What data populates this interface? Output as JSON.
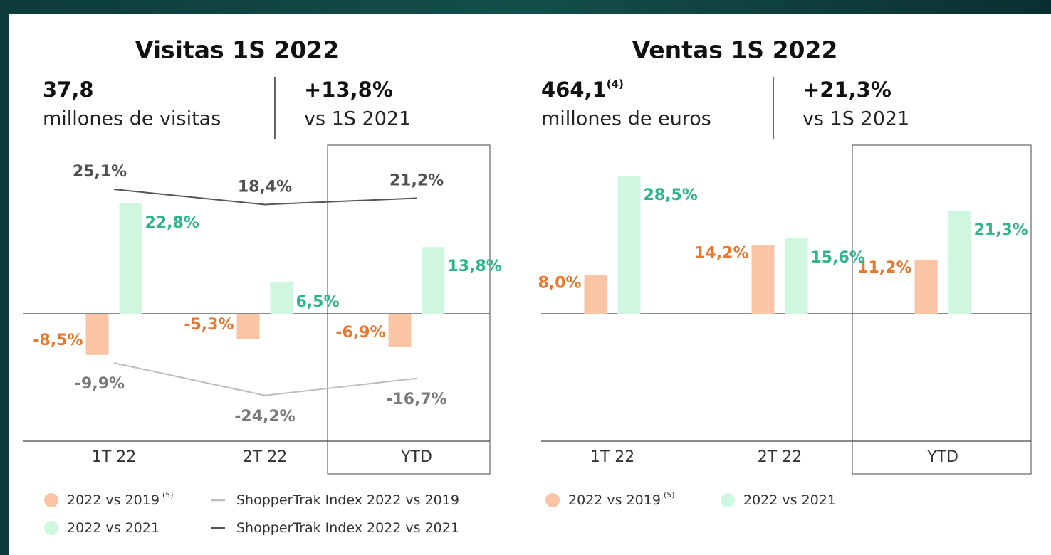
{
  "chart_data": [
    {
      "type": "bar",
      "title": "Visitas 1S 2022",
      "kpis": [
        {
          "value": "37,8",
          "text": "millones de visitas"
        },
        {
          "value": "+13,8%",
          "text": "vs 1S 2021"
        }
      ],
      "categories": [
        "1T 22",
        "2T 22",
        "YTD"
      ],
      "series": [
        {
          "name": "2022 vs 2019",
          "note": "(5)",
          "type": "bar",
          "color": "#f9c5a4",
          "label_color": "#e8782e",
          "values": [
            -8.5,
            -5.3,
            -6.9
          ],
          "value_labels": [
            "-8,5%",
            "-5,3%",
            "-6,9%"
          ]
        },
        {
          "name": "2022 vs 2021",
          "type": "bar",
          "color": "#cff6df",
          "label_color": "#2fb58b",
          "values": [
            22.8,
            6.5,
            13.8
          ],
          "value_labels": [
            "22,8%",
            "6,5%",
            "13,8%"
          ]
        },
        {
          "name": "ShopperTrak Index 2022 vs 2019",
          "type": "line",
          "color": "#bdbdbd",
          "label_color": "#7a7a7a",
          "values": [
            -9.9,
            -24.2,
            -16.7
          ],
          "value_labels": [
            "-9,9%",
            "-24,2%",
            "-16,7%"
          ]
        },
        {
          "name": "ShopperTrak Index 2022 vs 2021",
          "type": "line",
          "color": "#555555",
          "label_color": "#505050",
          "values": [
            25.1,
            18.4,
            21.2
          ],
          "value_labels": [
            "25,1%",
            "18,4%",
            "21,2%"
          ]
        }
      ]
    },
    {
      "type": "bar",
      "title": "Ventas 1S 2022",
      "kpis": [
        {
          "value": "464,1",
          "note": "(4)",
          "text": "millones de euros"
        },
        {
          "value": "+21,3%",
          "text": "vs 1S 2021"
        }
      ],
      "categories": [
        "1T 22",
        "2T 22",
        "YTD"
      ],
      "series": [
        {
          "name": "2022 vs 2019",
          "note": "(5)",
          "type": "bar",
          "color": "#f9c5a4",
          "label_color": "#e8782e",
          "values": [
            8.0,
            14.2,
            11.2
          ],
          "value_labels": [
            "8,0%",
            "14,2%",
            "11,2%"
          ]
        },
        {
          "name": "2022 vs 2021",
          "type": "bar",
          "color": "#cff6df",
          "label_color": "#2fb58b",
          "values": [
            28.5,
            15.6,
            21.3
          ],
          "value_labels": [
            "28,5%",
            "15,6%",
            "21,3%"
          ]
        }
      ]
    }
  ]
}
